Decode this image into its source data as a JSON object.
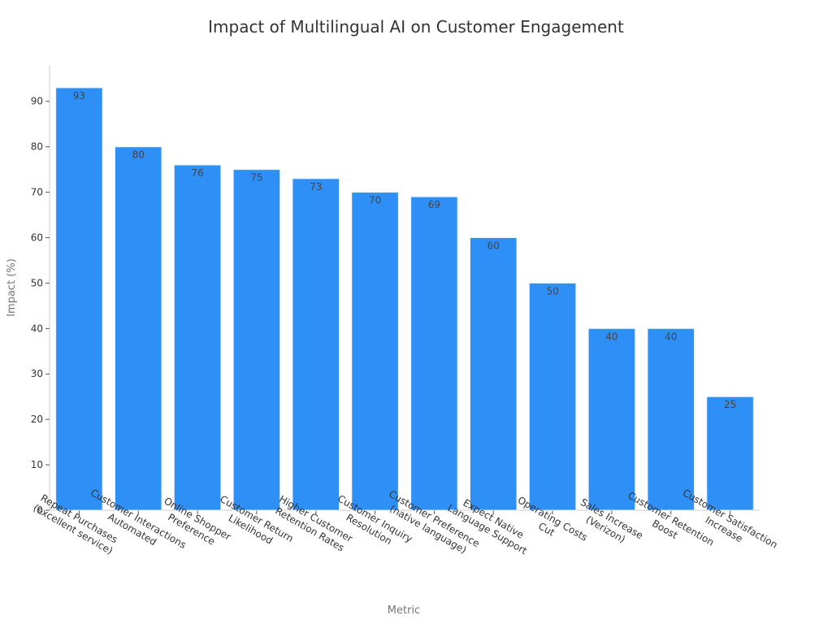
{
  "chart_data": {
    "type": "bar",
    "title": "Impact of Multilingual AI on Customer Engagement",
    "xlabel": "Metric",
    "ylabel": "Impact (%)",
    "ylim": [
      0,
      98
    ],
    "yticks": [
      0,
      10,
      20,
      30,
      40,
      50,
      60,
      70,
      80,
      90
    ],
    "grid": false,
    "bar_color": "#2e90f7",
    "categories": [
      [
        "Repeat Purchases",
        "(excellent service)"
      ],
      [
        "Customer Interactions",
        "Automated"
      ],
      [
        "Online Shopper",
        "Preference"
      ],
      [
        "Customer Return",
        "Likelihood"
      ],
      [
        "Higher Customer",
        "Retention Rates"
      ],
      [
        "Customer Inquiry",
        "Resolution"
      ],
      [
        "Customer Preference",
        "(native language)"
      ],
      [
        "Expect Native",
        "Language Support"
      ],
      [
        "Operating Costs",
        "Cut"
      ],
      [
        "Sales Increase",
        "(Verizon)"
      ],
      [
        "Customer Retention",
        "Boost"
      ],
      [
        "Customer Satisfaction",
        "Increase"
      ]
    ],
    "values": [
      93,
      80,
      76,
      75,
      73,
      70,
      69,
      60,
      50,
      40,
      40,
      25
    ]
  }
}
